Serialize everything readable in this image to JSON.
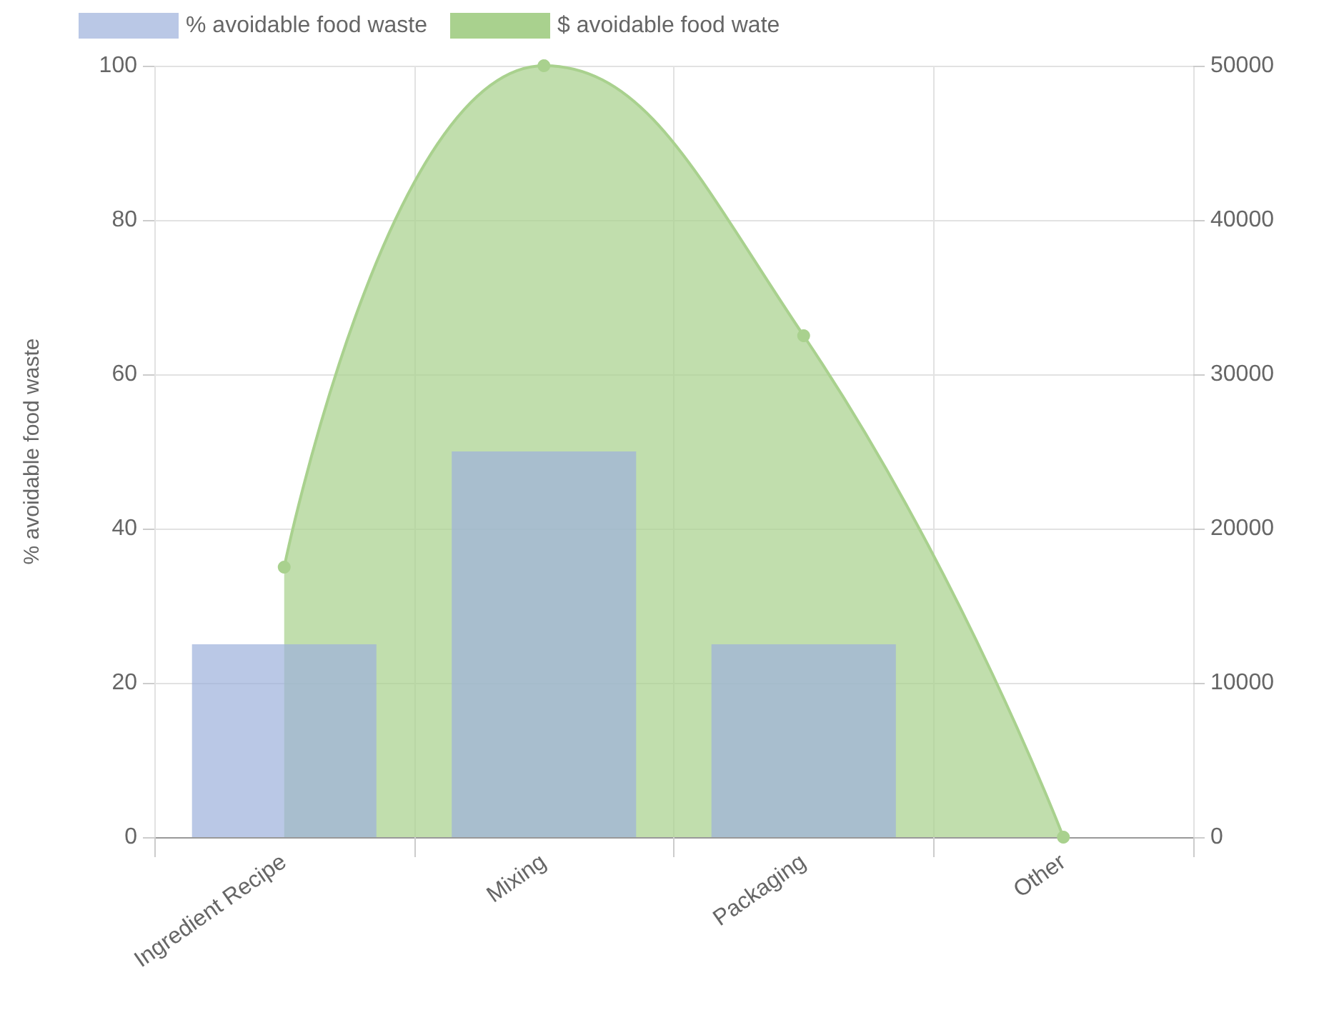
{
  "chart_data": {
    "type": "bar",
    "ylabel": "% avoidable food waste",
    "categories": [
      "Ingredient Recipe",
      "Mixing",
      "Packaging",
      "Other"
    ],
    "series": [
      {
        "name": "% avoidable food waste",
        "color": "#9cb0db",
        "values": [
          25,
          50,
          25,
          0
        ]
      },
      {
        "name": "$ avoidable food wate",
        "type": "area",
        "axis": "y2",
        "color": "#a9d18e",
        "values": [
          17500,
          50000,
          32500,
          0
        ]
      }
    ],
    "ylim": [
      0,
      100
    ],
    "yticks": [
      0,
      20,
      40,
      60,
      80,
      100
    ],
    "y2lim": [
      0,
      50000
    ],
    "y2ticks": [
      0,
      10000,
      20000,
      30000,
      40000,
      50000
    ],
    "grid": true,
    "legend": "top",
    "marker": "circle"
  }
}
